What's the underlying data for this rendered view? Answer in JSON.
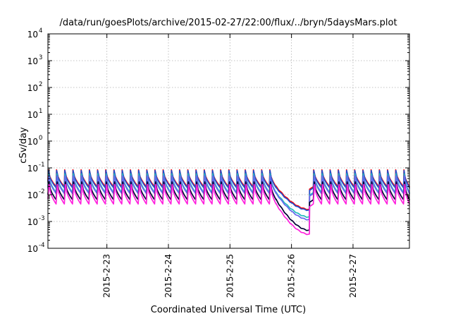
{
  "chart_data": {
    "type": "line",
    "title": "/data/run/goesPlots/archive/2015-02-27/22:00/flux/../bryn/5daysMars.plot",
    "xlabel": "Coordinated Universal Time (UTC)",
    "ylabel": "cSv/day",
    "yscale": "log",
    "ylim": [
      0.0001,
      10000
    ],
    "xlim": [
      "2015-02-22 01:00",
      "2015-02-27 22:00"
    ],
    "grid": true,
    "legend": "none",
    "y_ticks": [
      {
        "base": "10",
        "exp": "-4",
        "value": 0.0001
      },
      {
        "base": "10",
        "exp": "-3",
        "value": 0.001
      },
      {
        "base": "10",
        "exp": "-2",
        "value": 0.01
      },
      {
        "base": "10",
        "exp": "-1",
        "value": 0.1
      },
      {
        "base": "10",
        "exp": "0",
        "value": 1
      },
      {
        "base": "10",
        "exp": "1",
        "value": 10
      },
      {
        "base": "10",
        "exp": "2",
        "value": 100
      },
      {
        "base": "10",
        "exp": "3",
        "value": 1000
      },
      {
        "base": "10",
        "exp": "4",
        "value": 10000
      }
    ],
    "x_ticks": [
      {
        "label": "2015-2-23",
        "date": "2015-02-23 00:00"
      },
      {
        "label": "2015-2-24",
        "date": "2015-02-24 00:00"
      },
      {
        "label": "2015-2-25",
        "date": "2015-02-25 00:00"
      },
      {
        "label": "2015-2-26",
        "date": "2015-02-26 00:00"
      },
      {
        "label": "2015-2-27",
        "date": "2015-02-27 00:00"
      }
    ],
    "pulse_period_hours": 3.2,
    "gap": {
      "decline_start": "2015-02-25 18:00",
      "recovery": "2015-02-26 07:00",
      "restart": "2015-02-26 08:30"
    },
    "series": [
      {
        "color": "#ff0000",
        "peak": 0.085,
        "trough": 0.02,
        "gap_end": 0.0029
      },
      {
        "color": "#1f4fd0",
        "peak": 0.08,
        "trough": 0.018,
        "gap_end": 0.0027
      },
      {
        "color": "#22bbbb",
        "peak": 0.06,
        "trough": 0.012,
        "gap_end": 0.0015
      },
      {
        "color": "#6666ee",
        "peak": 0.05,
        "trough": 0.011,
        "gap_end": 0.0012
      },
      {
        "color": "#000033",
        "peak": 0.03,
        "trough": 0.0065,
        "gap_end": 0.00048
      },
      {
        "color": "#ff22dd",
        "peak": 0.024,
        "trough": 0.0045,
        "gap_end": 0.00034
      }
    ]
  }
}
